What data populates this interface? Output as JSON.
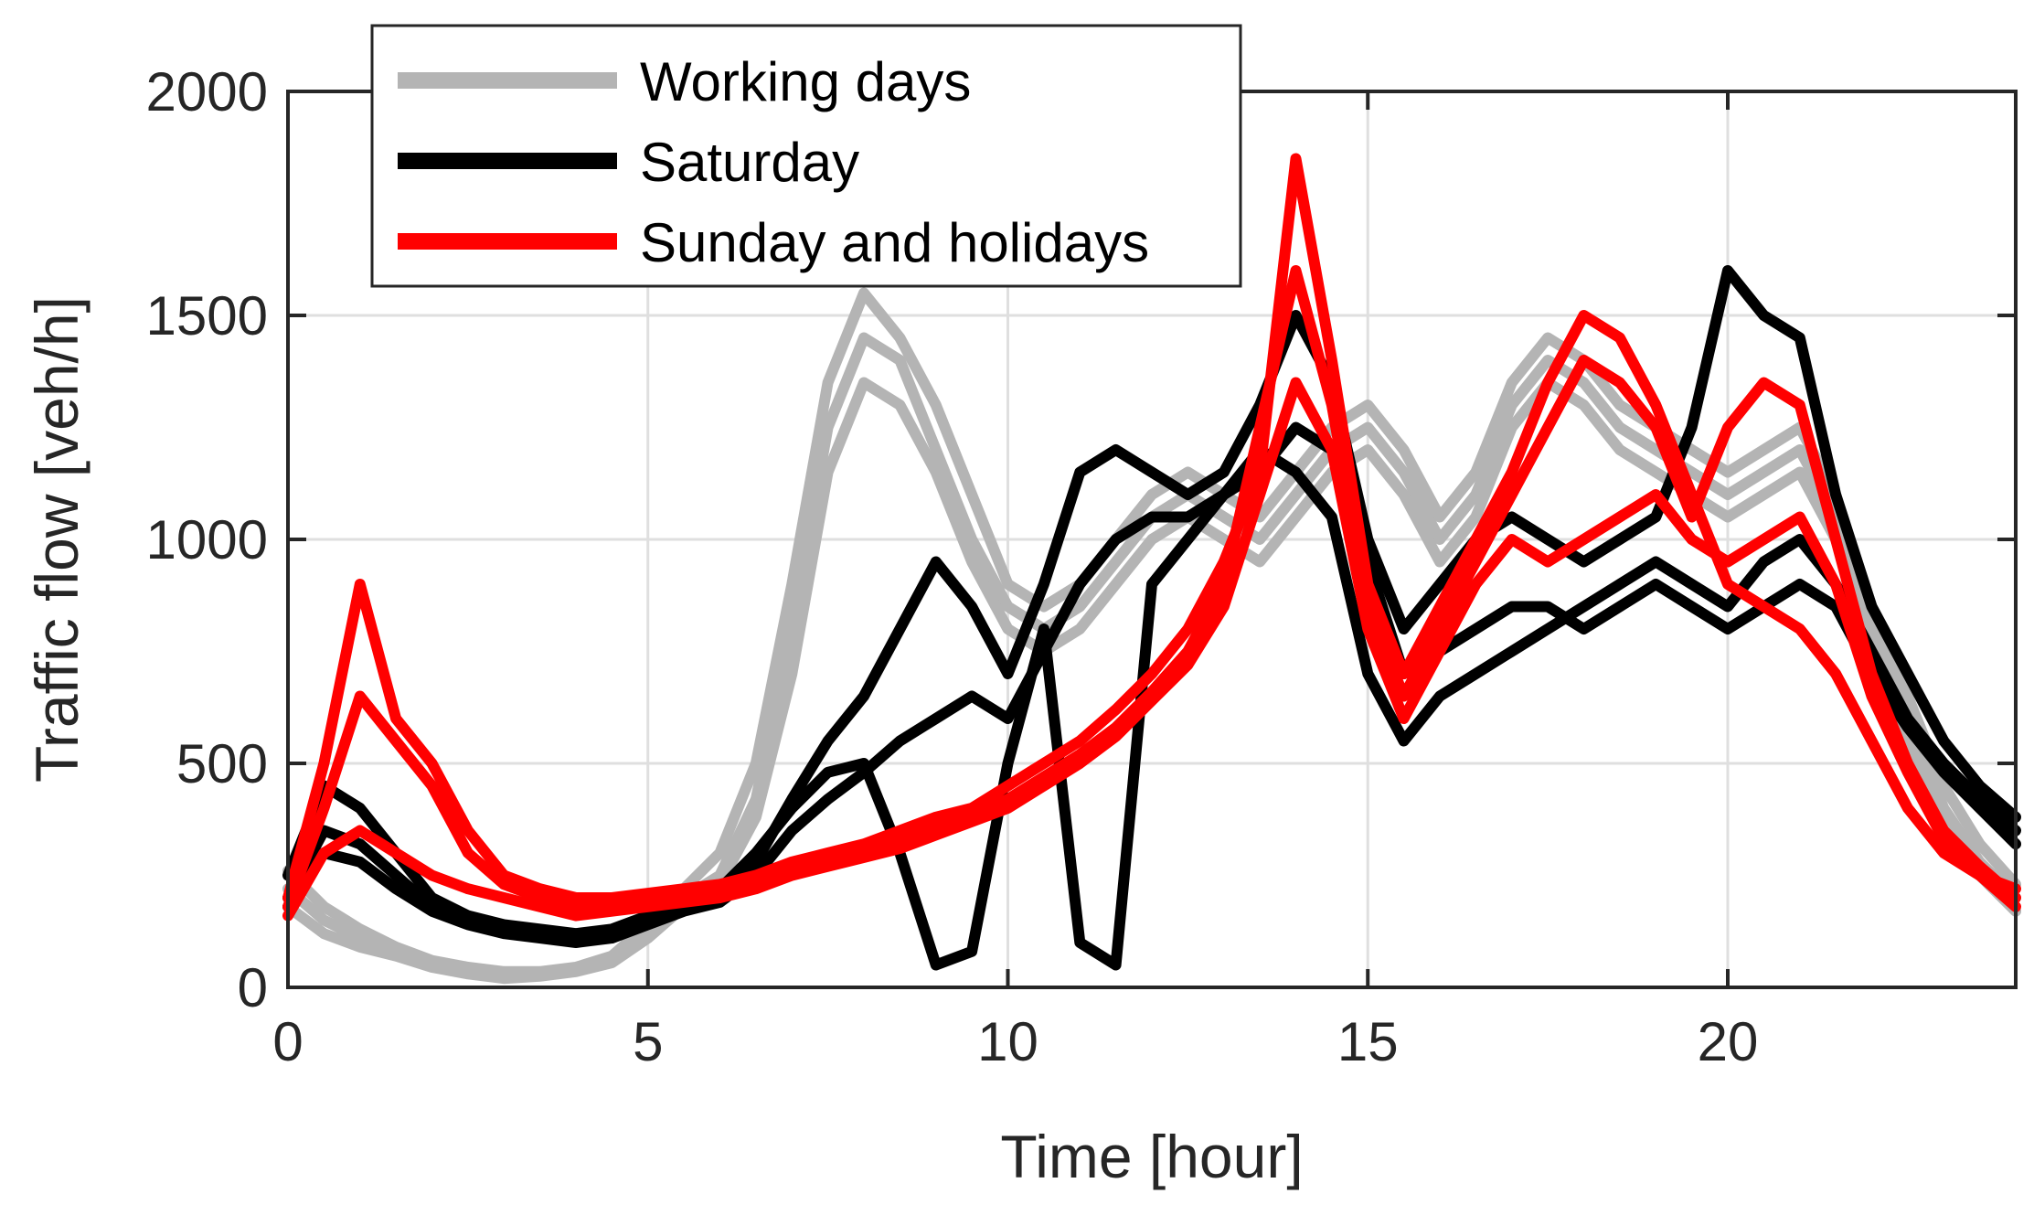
{
  "chart_data": {
    "type": "line",
    "title": "",
    "xlabel": "Time [hour]",
    "ylabel": "Traffic flow [veh/h]",
    "xlim": [
      0,
      24
    ],
    "ylim": [
      0,
      2000
    ],
    "xticks": [
      0,
      5,
      10,
      15,
      20
    ],
    "yticks": [
      0,
      500,
      1000,
      1500,
      2000
    ],
    "xtick_labels": [
      "0",
      "5",
      "10",
      "15",
      "20"
    ],
    "ytick_labels": [
      "0",
      "500",
      "1000",
      "1500",
      "2000"
    ],
    "grid": true,
    "legend_position": "top-left",
    "legend": [
      {
        "label": "Working days",
        "color": "#b4b4b4"
      },
      {
        "label": "Saturday",
        "color": "#000000"
      },
      {
        "label": "Sunday and holidays",
        "color": "#ff0000"
      }
    ],
    "series": [
      {
        "name": "Working days",
        "color": "#b4b4b4",
        "x": [
          0,
          0.5,
          1,
          1.5,
          2,
          2.5,
          3,
          3.5,
          4,
          4.5,
          5,
          5.5,
          6,
          6.5,
          7,
          7.5,
          8,
          8.5,
          9,
          9.5,
          10,
          10.5,
          11,
          11.5,
          12,
          12.5,
          13,
          13.5,
          14,
          14.5,
          15,
          15.5,
          16,
          16.5,
          17,
          17.5,
          18,
          18.5,
          19,
          19.5,
          20,
          20.5,
          21,
          21.5,
          22,
          22.5,
          23,
          23.5,
          24
        ],
        "y": [
          220,
          150,
          110,
          80,
          55,
          40,
          30,
          30,
          40,
          60,
          120,
          200,
          250,
          420,
          800,
          1250,
          1450,
          1400,
          1200,
          1000,
          850,
          800,
          850,
          950,
          1050,
          1100,
          1050,
          1000,
          1100,
          1200,
          1250,
          1150,
          1000,
          1100,
          1300,
          1400,
          1350,
          1250,
          1200,
          1150,
          1100,
          1150,
          1200,
          1050,
          800,
          600,
          400,
          280,
          200
        ]
      },
      {
        "name": "Working days",
        "color": "#b4b4b4",
        "x": [
          0,
          0.5,
          1,
          1.5,
          2,
          2.5,
          3,
          3.5,
          4,
          4.5,
          5,
          5.5,
          6,
          6.5,
          7,
          7.5,
          8,
          8.5,
          9,
          9.5,
          10,
          10.5,
          11,
          11.5,
          12,
          12.5,
          13,
          13.5,
          14,
          14.5,
          15,
          15.5,
          16,
          16.5,
          17,
          17.5,
          18,
          18.5,
          19,
          19.5,
          20,
          20.5,
          21,
          21.5,
          22,
          22.5,
          23,
          23.5,
          24
        ],
        "y": [
          260,
          180,
          130,
          90,
          60,
          45,
          35,
          35,
          45,
          70,
          140,
          220,
          300,
          500,
          900,
          1350,
          1550,
          1450,
          1300,
          1100,
          900,
          850,
          900,
          1000,
          1100,
          1150,
          1100,
          1050,
          1150,
          1250,
          1300,
          1200,
          1050,
          1150,
          1350,
          1450,
          1400,
          1300,
          1250,
          1200,
          1150,
          1200,
          1250,
          1100,
          850,
          650,
          450,
          320,
          230
        ]
      },
      {
        "name": "Working days",
        "color": "#b4b4b4",
        "x": [
          0,
          0.5,
          1,
          1.5,
          2,
          2.5,
          3,
          3.5,
          4,
          4.5,
          5,
          5.5,
          6,
          6.5,
          7,
          7.5,
          8,
          8.5,
          9,
          9.5,
          10,
          10.5,
          11,
          11.5,
          12,
          12.5,
          13,
          13.5,
          14,
          14.5,
          15,
          15.5,
          16,
          16.5,
          17,
          17.5,
          18,
          18.5,
          19,
          19.5,
          20,
          20.5,
          21,
          21.5,
          22,
          22.5,
          23,
          23.5,
          24
        ],
        "y": [
          180,
          120,
          90,
          70,
          45,
          30,
          20,
          25,
          35,
          55,
          110,
          180,
          230,
          380,
          700,
          1150,
          1350,
          1300,
          1150,
          950,
          800,
          750,
          800,
          900,
          1000,
          1050,
          1000,
          950,
          1050,
          1150,
          1200,
          1100,
          950,
          1050,
          1250,
          1350,
          1300,
          1200,
          1150,
          1100,
          1050,
          1100,
          1150,
          1000,
          750,
          550,
          380,
          250,
          170
        ]
      },
      {
        "name": "Saturday",
        "color": "#000000",
        "x": [
          0,
          0.5,
          1,
          1.5,
          2,
          2.5,
          3,
          3.5,
          4,
          4.5,
          5,
          5.5,
          6,
          6.5,
          7,
          7.5,
          8,
          8.5,
          9,
          9.5,
          10,
          10.5,
          11,
          11.5,
          12,
          12.5,
          13,
          13.5,
          14,
          14.5,
          15,
          15.5,
          16,
          16.5,
          17,
          17.5,
          18,
          18.5,
          19,
          19.5,
          20,
          20.5,
          21,
          21.5,
          22,
          22.5,
          23,
          23.5,
          24
        ],
        "y": [
          200,
          350,
          320,
          250,
          180,
          150,
          130,
          120,
          110,
          120,
          150,
          180,
          200,
          280,
          420,
          550,
          650,
          800,
          950,
          850,
          700,
          900,
          1150,
          1200,
          1150,
          1100,
          1150,
          1300,
          1500,
          1350,
          1000,
          800,
          900,
          1000,
          1050,
          1000,
          950,
          1000,
          1050,
          1250,
          1600,
          1500,
          1450,
          1100,
          850,
          700,
          550,
          450,
          380
        ]
      },
      {
        "name": "Saturday",
        "color": "#000000",
        "x": [
          0,
          0.5,
          1,
          1.5,
          2,
          2.5,
          3,
          3.5,
          4,
          4.5,
          5,
          5.5,
          6,
          6.5,
          7,
          7.5,
          8,
          8.5,
          9,
          9.5,
          10,
          10.5,
          11,
          11.5,
          12,
          12.5,
          13,
          13.5,
          14,
          14.5,
          15,
          15.5,
          16,
          16.5,
          17,
          17.5,
          18,
          18.5,
          19,
          19.5,
          20,
          20.5,
          21,
          21.5,
          22,
          22.5,
          23,
          23.5,
          24
        ],
        "y": [
          250,
          450,
          400,
          300,
          200,
          160,
          140,
          130,
          120,
          130,
          160,
          190,
          220,
          300,
          400,
          480,
          500,
          300,
          50,
          80,
          500,
          800,
          100,
          50,
          900,
          1000,
          1100,
          1200,
          1150,
          1050,
          700,
          550,
          650,
          700,
          750,
          800,
          850,
          900,
          950,
          900,
          850,
          950,
          1000,
          900,
          750,
          600,
          500,
          420,
          350
        ]
      },
      {
        "name": "Saturday",
        "color": "#000000",
        "x": [
          0,
          0.5,
          1,
          1.5,
          2,
          2.5,
          3,
          3.5,
          4,
          4.5,
          5,
          5.5,
          6,
          6.5,
          7,
          7.5,
          8,
          8.5,
          9,
          9.5,
          10,
          10.5,
          11,
          11.5,
          12,
          12.5,
          13,
          13.5,
          14,
          14.5,
          15,
          15.5,
          16,
          16.5,
          17,
          17.5,
          18,
          18.5,
          19,
          19.5,
          20,
          20.5,
          21,
          21.5,
          22,
          22.5,
          23,
          23.5,
          24
        ],
        "y": [
          180,
          300,
          280,
          220,
          170,
          140,
          120,
          110,
          100,
          110,
          140,
          170,
          190,
          250,
          350,
          420,
          480,
          550,
          600,
          650,
          600,
          750,
          900,
          1000,
          1050,
          1050,
          1100,
          1150,
          1250,
          1200,
          950,
          700,
          750,
          800,
          850,
          850,
          800,
          850,
          900,
          850,
          800,
          850,
          900,
          850,
          700,
          580,
          480,
          400,
          320
        ]
      },
      {
        "name": "Sunday and holidays",
        "color": "#ff0000",
        "x": [
          0,
          0.5,
          1,
          1.5,
          2,
          2.5,
          3,
          3.5,
          4,
          4.5,
          5,
          5.5,
          6,
          6.5,
          7,
          7.5,
          8,
          8.5,
          9,
          9.5,
          10,
          10.5,
          11,
          11.5,
          12,
          12.5,
          13,
          13.5,
          14,
          14.5,
          15,
          15.5,
          16,
          16.5,
          17,
          17.5,
          18,
          18.5,
          19,
          19.5,
          20,
          20.5,
          21,
          21.5,
          22,
          22.5,
          23,
          23.5,
          24
        ],
        "y": [
          200,
          500,
          900,
          600,
          500,
          350,
          250,
          220,
          200,
          200,
          210,
          220,
          230,
          250,
          280,
          300,
          320,
          350,
          380,
          400,
          450,
          500,
          550,
          620,
          700,
          800,
          950,
          1150,
          1850,
          1400,
          900,
          700,
          850,
          1000,
          1150,
          1350,
          1500,
          1450,
          1300,
          1100,
          900,
          850,
          800,
          700,
          550,
          400,
          300,
          250,
          220
        ]
      },
      {
        "name": "Sunday and holidays",
        "color": "#ff0000",
        "x": [
          0,
          0.5,
          1,
          1.5,
          2,
          2.5,
          3,
          3.5,
          4,
          4.5,
          5,
          5.5,
          6,
          6.5,
          7,
          7.5,
          8,
          8.5,
          9,
          9.5,
          10,
          10.5,
          11,
          11.5,
          12,
          12.5,
          13,
          13.5,
          14,
          14.5,
          15,
          15.5,
          16,
          16.5,
          17,
          17.5,
          18,
          18.5,
          19,
          19.5,
          20,
          20.5,
          21,
          21.5,
          22,
          22.5,
          23,
          23.5,
          24
        ],
        "y": [
          180,
          400,
          650,
          550,
          450,
          300,
          230,
          200,
          180,
          180,
          190,
          200,
          210,
          230,
          260,
          280,
          300,
          330,
          360,
          390,
          420,
          470,
          520,
          580,
          660,
          750,
          900,
          1250,
          1600,
          1300,
          850,
          650,
          800,
          950,
          1100,
          1250,
          1400,
          1350,
          1250,
          1050,
          1250,
          1350,
          1300,
          1000,
          700,
          500,
          350,
          270,
          200
        ]
      },
      {
        "name": "Sunday and holidays",
        "color": "#ff0000",
        "x": [
          0,
          0.5,
          1,
          1.5,
          2,
          2.5,
          3,
          3.5,
          4,
          4.5,
          5,
          5.5,
          6,
          6.5,
          7,
          7.5,
          8,
          8.5,
          9,
          9.5,
          10,
          10.5,
          11,
          11.5,
          12,
          12.5,
          13,
          13.5,
          14,
          14.5,
          15,
          15.5,
          16,
          16.5,
          17,
          17.5,
          18,
          18.5,
          19,
          19.5,
          20,
          20.5,
          21,
          21.5,
          22,
          22.5,
          23,
          23.5,
          24
        ],
        "y": [
          160,
          300,
          350,
          300,
          250,
          220,
          200,
          180,
          160,
          170,
          180,
          190,
          200,
          220,
          250,
          270,
          290,
          310,
          340,
          370,
          400,
          450,
          500,
          560,
          640,
          720,
          850,
          1100,
          1350,
          1200,
          800,
          600,
          750,
          900,
          1000,
          950,
          1000,
          1050,
          1100,
          1000,
          950,
          1000,
          1050,
          900,
          650,
          480,
          330,
          250,
          180
        ]
      }
    ]
  }
}
